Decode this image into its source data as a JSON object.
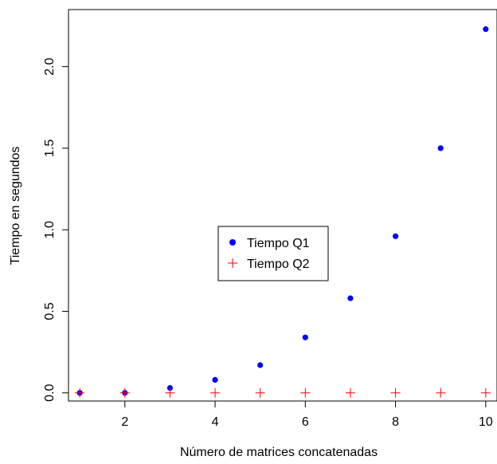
{
  "chart_data": {
    "type": "scatter",
    "title": "",
    "xlabel": "Número de matrices concatenadas",
    "ylabel": "Tiempo en segundos",
    "xlim": [
      0.75,
      10.25
    ],
    "ylim": [
      -0.05,
      2.35
    ],
    "x_ticks": [
      "2",
      "4",
      "6",
      "8",
      "10"
    ],
    "y_ticks": [
      "0.0",
      "0.5",
      "1.0",
      "1.5",
      "2.0"
    ],
    "x": [
      1,
      2,
      3,
      4,
      5,
      6,
      7,
      8,
      9,
      10
    ],
    "series": [
      {
        "name": "Tiempo Q1",
        "marker": "filled-circle",
        "color": "#0000ff",
        "values": [
          0.0,
          0.0,
          0.03,
          0.08,
          0.17,
          0.34,
          0.58,
          0.96,
          1.5,
          2.23
        ]
      },
      {
        "name": "Tiempo Q2",
        "marker": "plus",
        "color": "#ff0000",
        "values": [
          0.0,
          0.0,
          0.0,
          0.0,
          0.0,
          0.0,
          0.0,
          0.0,
          0.0,
          0.0
        ]
      }
    ],
    "grid": false,
    "legend_position": "center"
  }
}
